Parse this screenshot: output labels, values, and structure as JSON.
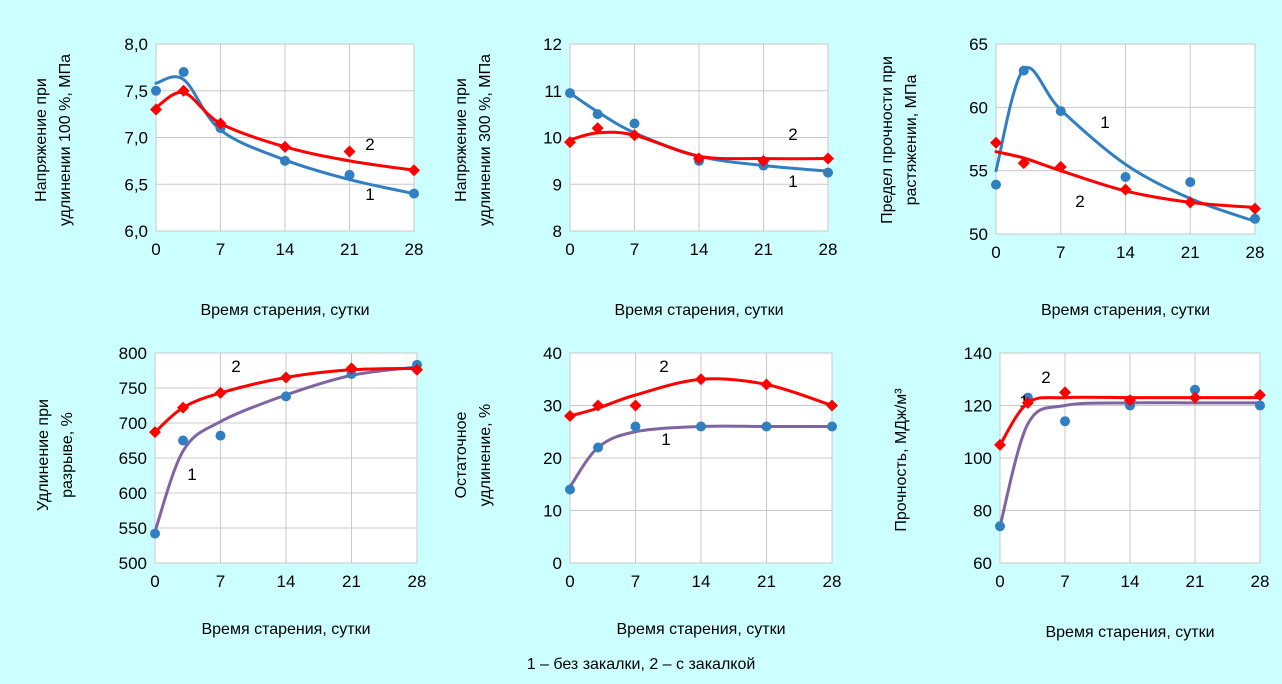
{
  "figure": {
    "caption": "1 – без закалки, 2 – с закалкой",
    "colors": {
      "background": "#ccffff",
      "series1_blue": "#2f7fc1",
      "series1_purple": "#8064a2",
      "series2": "#ff0000",
      "grid": "#c8c8c8"
    }
  },
  "chart_data": [
    {
      "type": "line",
      "ylabel_lines": [
        "Напряжение при",
        "удлинении 100 %, МПа"
      ],
      "xlabel": "Время старения, сутки",
      "xticks": [
        "0",
        "7",
        "14",
        "21",
        "28"
      ],
      "yticks": [
        "6,0",
        "6,5",
        "7,0",
        "7,5",
        "8,0"
      ],
      "xlim": [
        0,
        28
      ],
      "ylim": [
        6.0,
        8.0
      ],
      "grid": true,
      "legend": "none",
      "series": [
        {
          "label": "1",
          "color": "#2f7fc1",
          "marker": "circle",
          "x": [
            0,
            3,
            7,
            14,
            21,
            28
          ],
          "y": [
            7.5,
            7.7,
            7.1,
            6.75,
            6.6,
            6.4
          ],
          "curve_x": [
            0,
            3,
            7,
            14,
            21,
            28
          ],
          "curve_y": [
            7.58,
            7.62,
            7.08,
            6.76,
            6.55,
            6.4
          ]
        },
        {
          "label": "2",
          "color": "#ff0000",
          "marker": "diamond",
          "x": [
            0,
            3,
            7,
            14,
            21,
            28
          ],
          "y": [
            7.3,
            7.5,
            7.15,
            6.9,
            6.85,
            6.65
          ],
          "curve_x": [
            0,
            3,
            7,
            14,
            21,
            28
          ],
          "curve_y": [
            7.32,
            7.48,
            7.15,
            6.9,
            6.75,
            6.65
          ]
        }
      ]
    },
    {
      "type": "line",
      "ylabel_lines": [
        "Напряжение при",
        "удлинении 300 %, МПа"
      ],
      "xlabel": "Время старения, сутки",
      "xticks": [
        "0",
        "7",
        "14",
        "21",
        "28"
      ],
      "yticks": [
        "8",
        "9",
        "10",
        "11",
        "12"
      ],
      "xlim": [
        0,
        28
      ],
      "ylim": [
        8,
        12
      ],
      "grid": true,
      "legend": "none",
      "series": [
        {
          "label": "1",
          "color": "#2f7fc1",
          "marker": "circle",
          "x": [
            0,
            3,
            7,
            14,
            21,
            28
          ],
          "y": [
            10.95,
            10.5,
            10.3,
            9.5,
            9.4,
            9.25
          ],
          "curve_x": [
            0,
            3,
            7,
            14,
            21,
            28
          ],
          "curve_y": [
            10.95,
            10.55,
            10.1,
            9.6,
            9.4,
            9.28
          ]
        },
        {
          "label": "2",
          "color": "#ff0000",
          "marker": "diamond",
          "x": [
            0,
            3,
            7,
            14,
            21,
            28
          ],
          "y": [
            9.9,
            10.2,
            10.05,
            9.55,
            9.5,
            9.55
          ],
          "curve_x": [
            0,
            3,
            7,
            14,
            21,
            28
          ],
          "curve_y": [
            9.95,
            10.1,
            10.05,
            9.6,
            9.55,
            9.55
          ]
        }
      ]
    },
    {
      "type": "line",
      "ylabel_lines": [
        "Предел прочности при",
        "растяжении, МПа"
      ],
      "xlabel": "Время старения, сутки",
      "xticks": [
        "0",
        "7",
        "14",
        "21",
        "28"
      ],
      "yticks": [
        "50",
        "55",
        "60",
        "65"
      ],
      "xlim": [
        0,
        28
      ],
      "ylim": [
        50,
        65
      ],
      "grid": true,
      "legend": "none",
      "series": [
        {
          "label": "1",
          "color": "#2f7fc1",
          "marker": "circle",
          "x": [
            0,
            3,
            7,
            14,
            21,
            28
          ],
          "y": [
            53.9,
            62.9,
            59.7,
            54.5,
            54.1,
            51.2
          ],
          "curve_x": [
            0,
            3,
            7,
            14,
            21,
            28
          ],
          "curve_y": [
            55.0,
            63.0,
            59.8,
            55.5,
            52.8,
            51.0
          ]
        },
        {
          "label": "2",
          "color": "#ff0000",
          "marker": "diamond",
          "x": [
            0,
            3,
            7,
            14,
            21,
            28
          ],
          "y": [
            57.2,
            55.6,
            55.3,
            53.5,
            52.5,
            52.0
          ],
          "curve_x": [
            0,
            3,
            7,
            14,
            21,
            28
          ],
          "curve_y": [
            56.5,
            56.0,
            55.0,
            53.4,
            52.5,
            52.1
          ]
        }
      ]
    },
    {
      "type": "line",
      "ylabel_lines": [
        "Удлинение при",
        "разрыве, %"
      ],
      "xlabel": "Время старения, сутки",
      "xticks": [
        "0",
        "7",
        "14",
        "21",
        "28"
      ],
      "yticks": [
        "500",
        "550",
        "600",
        "650",
        "700",
        "750",
        "800"
      ],
      "xlim": [
        0,
        28
      ],
      "ylim": [
        500,
        800
      ],
      "grid": true,
      "legend": "none",
      "series": [
        {
          "label": "1",
          "color": "#8064a2",
          "marker_color": "#2f7fc1",
          "marker": "circle",
          "x": [
            0,
            3,
            7,
            14,
            21,
            28
          ],
          "y": [
            542,
            675,
            682,
            738,
            770,
            783
          ],
          "curve_x": [
            0,
            3,
            7,
            14,
            21,
            28
          ],
          "curve_y": [
            545,
            660,
            702,
            740,
            768,
            780
          ]
        },
        {
          "label": "2",
          "color": "#ff0000",
          "marker": "diamond",
          "x": [
            0,
            3,
            7,
            14,
            21,
            28
          ],
          "y": [
            687,
            722,
            743,
            765,
            778,
            776
          ],
          "curve_x": [
            0,
            3,
            7,
            14,
            21,
            28
          ],
          "curve_y": [
            687,
            722,
            743,
            765,
            776,
            778
          ]
        }
      ]
    },
    {
      "type": "line",
      "ylabel_lines": [
        "Остаточное",
        "удлинение, %"
      ],
      "xlabel": "Время старения, сутки",
      "xticks": [
        "0",
        "7",
        "14",
        "21",
        "28"
      ],
      "yticks": [
        "0",
        "10",
        "20",
        "30",
        "40"
      ],
      "xlim": [
        0,
        28
      ],
      "ylim": [
        0,
        40
      ],
      "grid": true,
      "legend": "none",
      "series": [
        {
          "label": "1",
          "color": "#8064a2",
          "marker_color": "#2f7fc1",
          "marker": "circle",
          "x": [
            0,
            3,
            7,
            14,
            21,
            28
          ],
          "y": [
            14,
            22,
            26,
            26,
            26,
            26
          ],
          "curve_x": [
            0,
            3,
            7,
            14,
            21,
            28
          ],
          "curve_y": [
            14.5,
            22,
            25,
            26,
            26,
            26
          ]
        },
        {
          "label": "2",
          "color": "#ff0000",
          "marker": "diamond",
          "x": [
            0,
            3,
            7,
            14,
            21,
            28
          ],
          "y": [
            28,
            30,
            30,
            35,
            34,
            30
          ],
          "curve_x": [
            0,
            3,
            7,
            14,
            21,
            28
          ],
          "curve_y": [
            28,
            29.5,
            32,
            35,
            34,
            30
          ]
        }
      ]
    },
    {
      "type": "line",
      "ylabel": "Прочность, МДж/м³",
      "xlabel": "Время старения, сутки",
      "xticks": [
        "0",
        "7",
        "14",
        "21",
        "28"
      ],
      "yticks": [
        "60",
        "80",
        "100",
        "120",
        "140"
      ],
      "xlim": [
        0,
        28
      ],
      "ylim": [
        60,
        140
      ],
      "grid": true,
      "legend": "none",
      "series": [
        {
          "label": "1",
          "color": "#8064a2",
          "marker_color": "#2f7fc1",
          "marker": "circle",
          "x": [
            0,
            3,
            7,
            14,
            21,
            28
          ],
          "y": [
            74,
            123,
            114,
            120,
            126,
            120
          ],
          "curve_x": [
            0,
            3,
            7,
            14,
            21,
            28
          ],
          "curve_y": [
            74,
            113,
            120,
            121,
            121,
            121
          ]
        },
        {
          "label": "2",
          "color": "#ff0000",
          "marker": "diamond",
          "x": [
            0,
            3,
            7,
            14,
            21,
            28
          ],
          "y": [
            105,
            121,
            125,
            122,
            123,
            124
          ],
          "curve_x": [
            0,
            3,
            7,
            14,
            21,
            28
          ],
          "curve_y": [
            105,
            121,
            123,
            123,
            123,
            123
          ]
        }
      ]
    }
  ]
}
